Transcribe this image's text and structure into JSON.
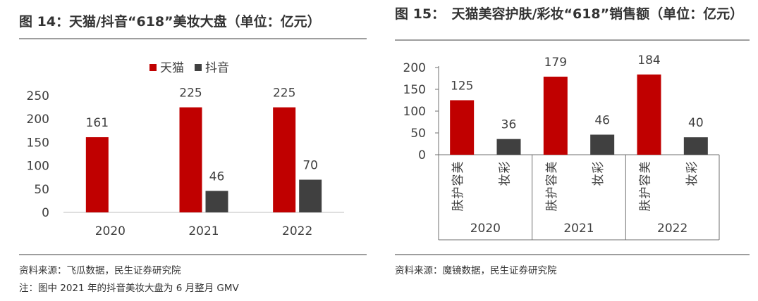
{
  "colors": {
    "tmall": "#c00000",
    "douyin": "#404040",
    "axis": "#bfbfbf",
    "frame": "#6f6f6f"
  },
  "left": {
    "title": "图 14：天猫/抖音“618”美妆大盘（单位：亿元）",
    "source": "资料来源：飞瓜数据，民生证券研究院",
    "note": "注：图中 2021 年的抖音美妆大盘为 6 月整月 GMV"
  },
  "right": {
    "title": "图 15：　天猫美容护肤/彩妆“618”销售额（单位：亿元）",
    "source": "资料来源：魔镜数据，民生证券研究院"
  },
  "chart_data": [
    {
      "type": "bar",
      "title": "图 14：天猫/抖音“618”美妆大盘（单位：亿元）",
      "categories": [
        "2020",
        "2021",
        "2022"
      ],
      "series": [
        {
          "name": "天猫",
          "values": [
            161,
            225,
            225
          ]
        },
        {
          "name": "抖音",
          "values": [
            null,
            46,
            70
          ]
        }
      ],
      "ylim": [
        0,
        250
      ],
      "yticks": [
        0,
        50,
        100,
        150,
        200,
        250
      ],
      "legend": "top-center",
      "grid": false
    },
    {
      "type": "bar",
      "title": "图 15：　天猫美容护肤/彩妆“618”销售额（单位：亿元）",
      "groups": [
        "2020",
        "2021",
        "2022"
      ],
      "subcategories": [
        "美容护肤",
        "彩妆"
      ],
      "values": [
        [
          125,
          36
        ],
        [
          179,
          46
        ],
        [
          184,
          40
        ]
      ],
      "ylim": [
        0,
        200
      ],
      "yticks": [
        0,
        50,
        100,
        150,
        200
      ],
      "legend": "none",
      "grid": false
    }
  ]
}
